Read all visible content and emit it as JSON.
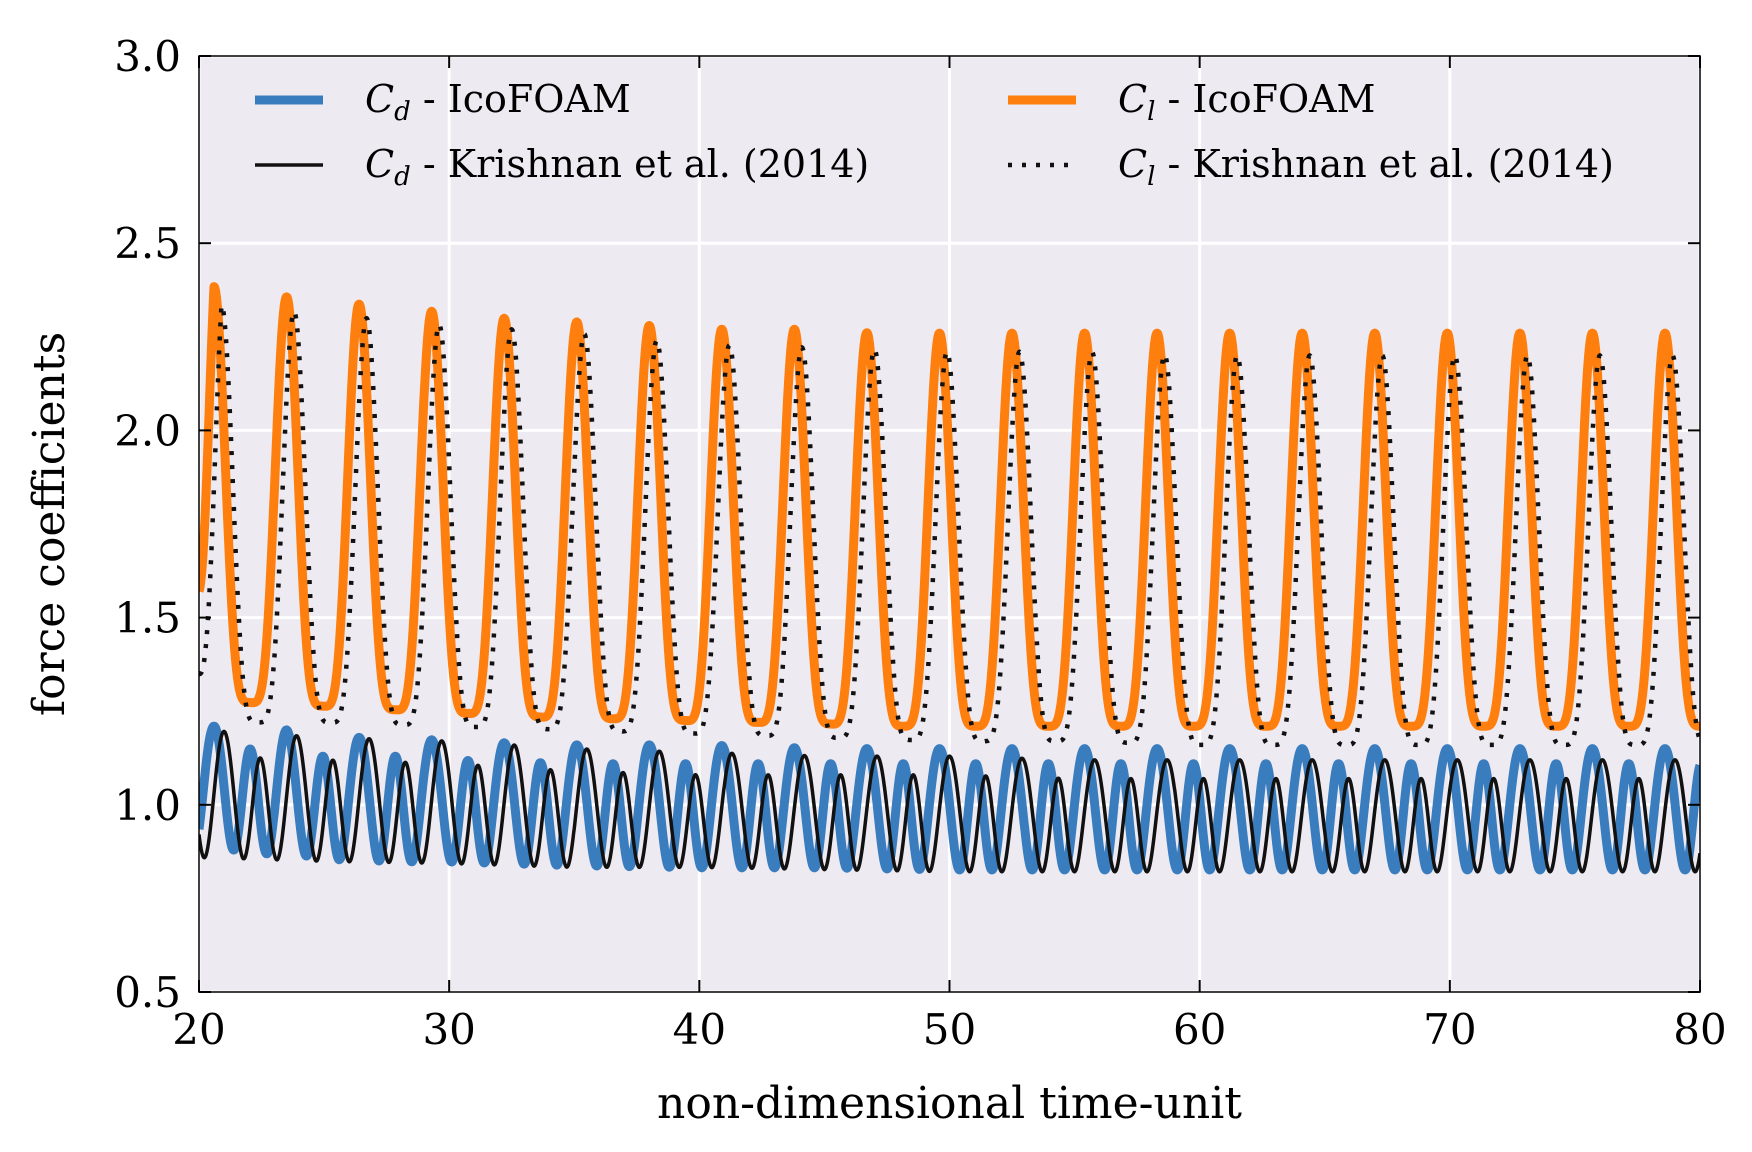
{
  "chart_data": {
    "type": "line",
    "xlabel": "non-dimensional time-unit",
    "ylabel": "force coefficients",
    "xlim": [
      20,
      80
    ],
    "ylim": [
      0.5,
      3.0
    ],
    "xticks": [
      "20",
      "30",
      "40",
      "50",
      "60",
      "70",
      "80"
    ],
    "yticks": [
      "0.5",
      "1.0",
      "1.5",
      "2.0",
      "2.5",
      "3.0"
    ],
    "grid": true,
    "legend_placement": "top",
    "legend_columns": 2,
    "series": [
      {
        "name": "C_d - IcoFOAM",
        "legend_symbol": "C",
        "legend_subscript": "d",
        "legend_text": " - IcoFOAM",
        "color": "#3a7dbf",
        "style": "solid-thick",
        "x": [
          20.0,
          20.5,
          21.0,
          21.5,
          22.0,
          22.5,
          23.0,
          23.5,
          24.0,
          24.5,
          25.0,
          26.0,
          28.0,
          30.0,
          35.0,
          40.0,
          45.0,
          50.0,
          55.0,
          60.0,
          65.0,
          70.0,
          75.0,
          80.0
        ],
        "min": [
          0.8,
          0.8,
          0.8,
          0.8,
          0.8,
          0.79,
          0.79,
          0.78,
          0.78,
          0.78,
          0.77,
          0.77,
          0.76,
          0.76,
          0.75,
          0.74,
          0.74,
          0.73,
          0.73,
          0.73,
          0.73,
          0.73,
          0.73,
          0.73
        ],
        "max": [
          1.22,
          1.21,
          1.21,
          1.21,
          1.21,
          1.2,
          1.2,
          1.2,
          1.19,
          1.19,
          1.19,
          1.18,
          1.18,
          1.17,
          1.16,
          1.16,
          1.15,
          1.15,
          1.15,
          1.15,
          1.15,
          1.15,
          1.15,
          1.15
        ],
        "sub_peak": [
          1.17,
          1.16,
          1.16,
          1.15,
          1.15,
          1.14,
          1.14,
          1.14,
          1.13,
          1.13,
          1.13,
          1.13,
          1.13,
          1.12,
          1.11,
          1.11,
          1.11,
          1.11,
          1.11,
          1.11,
          1.11,
          1.11,
          1.11,
          1.11
        ],
        "sub_trough": [
          0.98,
          0.98,
          0.97,
          0.97,
          0.97,
          0.96,
          0.96,
          0.96,
          0.96,
          0.96,
          0.95,
          0.95,
          0.95,
          0.95,
          0.94,
          0.94,
          0.94,
          0.94,
          0.94,
          0.94,
          0.94,
          0.94,
          0.94,
          0.94
        ],
        "period": 1.45,
        "phase": 20.6
      },
      {
        "name": "C_d - Krishnan et al. (2014)",
        "legend_symbol": "C",
        "legend_subscript": "d",
        "legend_text": " - Krishnan et al. (2014)",
        "color": "#111111",
        "style": "solid-thin",
        "x": [
          20.0,
          25.0,
          30.0,
          35.0,
          40.0,
          45.0,
          50.0,
          55.0,
          60.0,
          65.0,
          70.0,
          75.0,
          80.0
        ],
        "min": [
          0.78,
          0.77,
          0.76,
          0.75,
          0.75,
          0.74,
          0.73,
          0.73,
          0.73,
          0.73,
          0.73,
          0.73,
          0.73
        ],
        "max": [
          1.2,
          1.18,
          1.17,
          1.15,
          1.14,
          1.13,
          1.13,
          1.12,
          1.12,
          1.12,
          1.12,
          1.12,
          1.12
        ],
        "sub_peak": [
          1.13,
          1.12,
          1.11,
          1.09,
          1.08,
          1.08,
          1.08,
          1.07,
          1.07,
          1.07,
          1.07,
          1.07,
          1.07
        ],
        "sub_trough": [
          0.95,
          0.94,
          0.94,
          0.93,
          0.93,
          0.93,
          0.93,
          0.93,
          0.93,
          0.93,
          0.93,
          0.93,
          0.93
        ],
        "period": 1.45,
        "phase": 21.0
      },
      {
        "name": "C_l - IcoFOAM",
        "legend_symbol": "C",
        "legend_subscript": "l",
        "legend_text": " - IcoFOAM",
        "color": "#ff7f0e",
        "style": "solid-thick",
        "x": [
          20.0,
          23.0,
          26.0,
          29.0,
          32.0,
          35.0,
          38.0,
          41.0,
          44.0,
          47.0,
          50.0,
          55.0,
          60.0,
          65.0,
          70.0,
          75.0,
          80.0
        ],
        "min": [
          1.28,
          1.27,
          1.26,
          1.25,
          1.24,
          1.23,
          1.23,
          1.22,
          1.22,
          1.21,
          1.21,
          1.21,
          1.21,
          1.21,
          1.21,
          1.21,
          1.21
        ],
        "max": [
          2.39,
          2.36,
          2.34,
          2.32,
          2.3,
          2.29,
          2.28,
          2.27,
          2.27,
          2.26,
          2.26,
          2.26,
          2.26,
          2.26,
          2.26,
          2.26,
          2.26
        ],
        "period": 2.9,
        "phase": 20.6,
        "start_value": 1.57
      },
      {
        "name": "C_l - Krishnan et al. (2014)",
        "legend_symbol": "C",
        "legend_subscript": "l",
        "legend_text": " - Krishnan et al. (2014)",
        "color": "#111111",
        "style": "dotted",
        "x": [
          20.0,
          25.0,
          30.0,
          35.0,
          40.0,
          45.0,
          50.0,
          55.0,
          60.0,
          65.0,
          70.0,
          75.0,
          80.0
        ],
        "min": [
          1.22,
          1.22,
          1.21,
          1.2,
          1.19,
          1.18,
          1.17,
          1.17,
          1.16,
          1.16,
          1.16,
          1.16,
          1.16
        ],
        "max": [
          2.34,
          2.31,
          2.28,
          2.26,
          2.23,
          2.22,
          2.21,
          2.21,
          2.2,
          2.2,
          2.2,
          2.2,
          2.2
        ],
        "period": 2.9,
        "phase": 20.9,
        "start_value": 1.35
      }
    ]
  }
}
